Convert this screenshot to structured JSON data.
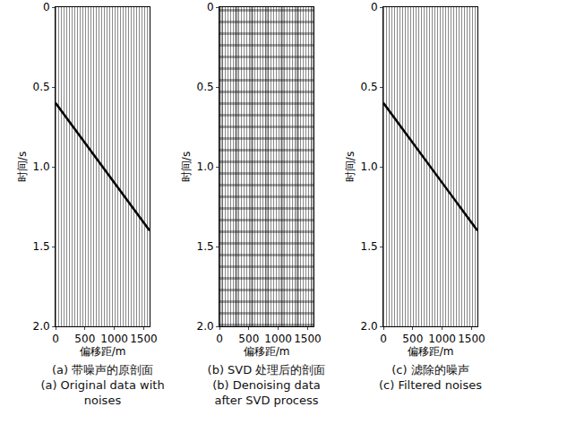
{
  "chart_data": [
    {
      "type": "line",
      "title": "(a) 带噪声的原剖面",
      "subtitle": "(a) Original data with noises",
      "x_label": "偏移距/m",
      "y_label": "时间/s",
      "x": [
        0,
        1600
      ],
      "values": [
        0.6,
        1.4
      ],
      "color": "#000000",
      "xlim": [
        0,
        1600
      ],
      "xticks": [
        0,
        500,
        1000,
        1500
      ],
      "ylim": [
        2,
        0
      ],
      "yticks": [
        0,
        0.5,
        {
          "value": 1,
          "label": "1.0"
        },
        1.5,
        {
          "value": 2,
          "label": "2.0"
        }
      ],
      "grid": false
    },
    {
      "type": "line",
      "title": "(b) SVD 处理后的剖面",
      "subtitle": "(b) Denoising data after SVD process",
      "x_label": "偏移距/m",
      "y_label": "时间/s",
      "xlim": [
        0,
        1600
      ],
      "xticks": [
        0,
        500,
        1000,
        1500
      ],
      "ylim": [
        2,
        0
      ],
      "yticks": [
        0,
        0.5,
        {
          "value": 1,
          "label": "1.0"
        },
        1.5,
        {
          "value": 2,
          "label": "2.0"
        }
      ],
      "grid": false
    },
    {
      "type": "line",
      "title": "(c) 滤除的噪声",
      "subtitle": "(c) Filtered noises",
      "x_label": "偏移距/m",
      "y_label": "时间/s",
      "x": [
        0,
        1600
      ],
      "values": [
        0.6,
        1.4
      ],
      "color": "#000000",
      "xlim": [
        0,
        1600
      ],
      "xticks": [
        0,
        500,
        1000,
        1500
      ],
      "ylim": [
        2,
        0
      ],
      "yticks": [
        0,
        0.5,
        {
          "value": 1,
          "label": "1.0"
        },
        1.5,
        {
          "value": 2,
          "label": "2.0"
        }
      ],
      "grid": false
    }
  ]
}
